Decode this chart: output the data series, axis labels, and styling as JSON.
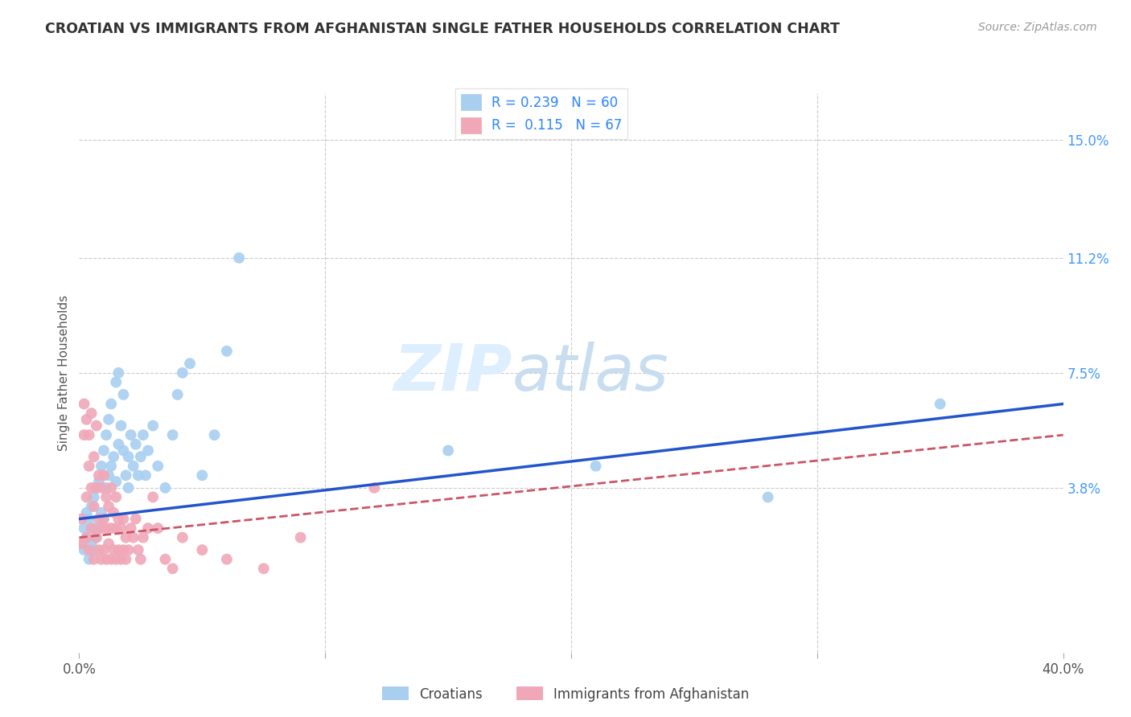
{
  "title": "CROATIAN VS IMMIGRANTS FROM AFGHANISTAN SINGLE FATHER HOUSEHOLDS CORRELATION CHART",
  "source": "Source: ZipAtlas.com",
  "ylabel": "Single Father Households",
  "ytick_labels": [
    "15.0%",
    "11.2%",
    "7.5%",
    "3.8%"
  ],
  "ytick_values": [
    0.15,
    0.112,
    0.075,
    0.038
  ],
  "xlim": [
    0.0,
    0.4
  ],
  "ylim": [
    -0.015,
    0.165
  ],
  "croatian_R": 0.239,
  "croatian_N": 60,
  "afghan_R": 0.115,
  "afghan_N": 67,
  "croatian_color": "#a8cff0",
  "afghan_color": "#f0a8b8",
  "croatian_line_color": "#2255cc",
  "afghan_line_color": "#cc5566",
  "background_color": "#ffffff",
  "grid_color": "#cccccc",
  "watermark_zip": "ZIP",
  "watermark_atlas": "atlas",
  "watermark_color": "#ddeeff",
  "legend_label_1": "Croatians",
  "legend_label_2": "Immigrants from Afghanistan",
  "croatian_scatter_x": [
    0.001,
    0.002,
    0.002,
    0.003,
    0.003,
    0.004,
    0.004,
    0.005,
    0.005,
    0.006,
    0.006,
    0.006,
    0.007,
    0.007,
    0.008,
    0.008,
    0.009,
    0.009,
    0.01,
    0.01,
    0.011,
    0.011,
    0.012,
    0.012,
    0.013,
    0.013,
    0.014,
    0.015,
    0.015,
    0.016,
    0.016,
    0.017,
    0.018,
    0.018,
    0.019,
    0.02,
    0.02,
    0.021,
    0.022,
    0.023,
    0.024,
    0.025,
    0.026,
    0.027,
    0.028,
    0.03,
    0.032,
    0.035,
    0.038,
    0.04,
    0.042,
    0.045,
    0.05,
    0.055,
    0.06,
    0.065,
    0.15,
    0.21,
    0.28,
    0.35
  ],
  "croatian_scatter_y": [
    0.02,
    0.018,
    0.025,
    0.022,
    0.03,
    0.015,
    0.028,
    0.02,
    0.032,
    0.018,
    0.025,
    0.035,
    0.022,
    0.038,
    0.025,
    0.04,
    0.03,
    0.045,
    0.028,
    0.05,
    0.038,
    0.055,
    0.042,
    0.06,
    0.045,
    0.065,
    0.048,
    0.04,
    0.072,
    0.052,
    0.075,
    0.058,
    0.05,
    0.068,
    0.042,
    0.048,
    0.038,
    0.055,
    0.045,
    0.052,
    0.042,
    0.048,
    0.055,
    0.042,
    0.05,
    0.058,
    0.045,
    0.038,
    0.055,
    0.068,
    0.075,
    0.078,
    0.042,
    0.055,
    0.082,
    0.112,
    0.05,
    0.045,
    0.035,
    0.065
  ],
  "afghan_scatter_x": [
    0.001,
    0.001,
    0.002,
    0.002,
    0.003,
    0.003,
    0.003,
    0.004,
    0.004,
    0.004,
    0.005,
    0.005,
    0.005,
    0.006,
    0.006,
    0.006,
    0.007,
    0.007,
    0.007,
    0.008,
    0.008,
    0.008,
    0.009,
    0.009,
    0.009,
    0.01,
    0.01,
    0.01,
    0.011,
    0.011,
    0.011,
    0.012,
    0.012,
    0.013,
    0.013,
    0.013,
    0.014,
    0.014,
    0.015,
    0.015,
    0.015,
    0.016,
    0.016,
    0.017,
    0.017,
    0.018,
    0.018,
    0.019,
    0.019,
    0.02,
    0.021,
    0.022,
    0.023,
    0.024,
    0.025,
    0.026,
    0.028,
    0.03,
    0.032,
    0.035,
    0.038,
    0.042,
    0.05,
    0.06,
    0.075,
    0.09,
    0.12
  ],
  "afghan_scatter_y": [
    0.02,
    0.028,
    0.065,
    0.055,
    0.022,
    0.035,
    0.06,
    0.018,
    0.045,
    0.055,
    0.025,
    0.038,
    0.062,
    0.015,
    0.032,
    0.048,
    0.022,
    0.038,
    0.058,
    0.018,
    0.028,
    0.042,
    0.015,
    0.025,
    0.038,
    0.018,
    0.028,
    0.042,
    0.015,
    0.025,
    0.035,
    0.02,
    0.032,
    0.015,
    0.025,
    0.038,
    0.018,
    0.03,
    0.015,
    0.025,
    0.035,
    0.018,
    0.028,
    0.015,
    0.025,
    0.018,
    0.028,
    0.015,
    0.022,
    0.018,
    0.025,
    0.022,
    0.028,
    0.018,
    0.015,
    0.022,
    0.025,
    0.035,
    0.025,
    0.015,
    0.012,
    0.022,
    0.018,
    0.015,
    0.012,
    0.022,
    0.038
  ]
}
